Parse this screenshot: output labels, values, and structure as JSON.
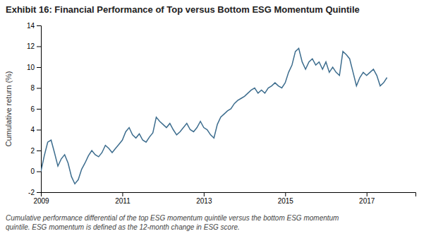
{
  "chart_data": {
    "type": "line",
    "title": "Exhibit 16: Financial Performance of Top versus Bottom ESG Momentum Quintile",
    "y_label": "Cumulative return (%)",
    "caption": "Cumulative performance differential of the top ESG momentum quintile versus the bottom ESG momentum\nquintile. ESG momentum is defined as the 12-month change in ESG score.",
    "color": "#3d6d8e",
    "grid": false,
    "xlim": [
      2009.0,
      2018.2
    ],
    "xticks": [
      2009,
      2011,
      2013,
      2015,
      2017
    ],
    "ylim": [
      -2,
      14
    ],
    "yticks": [
      -2,
      0,
      2,
      4,
      6,
      8,
      10,
      12,
      14
    ],
    "x": [
      2009.0,
      2009.083,
      2009.167,
      2009.25,
      2009.333,
      2009.417,
      2009.5,
      2009.583,
      2009.667,
      2009.75,
      2009.833,
      2009.917,
      2010.0,
      2010.083,
      2010.167,
      2010.25,
      2010.333,
      2010.417,
      2010.5,
      2010.583,
      2010.667,
      2010.75,
      2010.833,
      2010.917,
      2011.0,
      2011.083,
      2011.167,
      2011.25,
      2011.333,
      2011.417,
      2011.5,
      2011.583,
      2011.667,
      2011.75,
      2011.833,
      2011.917,
      2012.0,
      2012.083,
      2012.167,
      2012.25,
      2012.333,
      2012.417,
      2012.5,
      2012.583,
      2012.667,
      2012.75,
      2012.833,
      2012.917,
      2013.0,
      2013.083,
      2013.167,
      2013.25,
      2013.333,
      2013.417,
      2013.5,
      2013.583,
      2013.667,
      2013.75,
      2013.833,
      2013.917,
      2014.0,
      2014.083,
      2014.167,
      2014.25,
      2014.333,
      2014.417,
      2014.5,
      2014.583,
      2014.667,
      2014.75,
      2014.833,
      2014.917,
      2015.0,
      2015.083,
      2015.167,
      2015.25,
      2015.333,
      2015.417,
      2015.5,
      2015.583,
      2015.667,
      2015.75,
      2015.833,
      2015.917,
      2016.0,
      2016.083,
      2016.167,
      2016.25,
      2016.333,
      2016.417,
      2016.5,
      2016.583,
      2016.667,
      2016.75,
      2016.833,
      2016.917,
      2017.0,
      2017.083,
      2017.167,
      2017.25,
      2017.333,
      2017.417,
      2017.5
    ],
    "values": [
      0.0,
      1.5,
      2.8,
      3.0,
      1.8,
      0.5,
      1.2,
      1.6,
      0.8,
      -0.5,
      -1.2,
      -0.8,
      0.2,
      0.8,
      1.5,
      2.0,
      1.6,
      1.4,
      1.8,
      2.5,
      2.2,
      1.8,
      2.2,
      2.6,
      3.0,
      3.8,
      4.2,
      3.5,
      3.2,
      3.6,
      3.0,
      2.8,
      3.3,
      3.7,
      5.2,
      4.8,
      4.5,
      4.2,
      4.6,
      4.0,
      3.5,
      3.8,
      4.2,
      4.6,
      4.0,
      3.8,
      4.2,
      4.8,
      4.2,
      4.0,
      3.5,
      3.2,
      4.5,
      5.2,
      5.5,
      5.8,
      6.0,
      6.5,
      6.8,
      7.0,
      7.2,
      7.5,
      7.8,
      8.0,
      7.5,
      7.8,
      7.5,
      8.0,
      8.2,
      8.5,
      8.2,
      8.0,
      8.5,
      9.5,
      10.2,
      11.5,
      11.8,
      10.5,
      9.8,
      10.5,
      10.8,
      10.2,
      10.5,
      9.8,
      10.5,
      9.5,
      10.0,
      9.5,
      9.2,
      11.5,
      11.2,
      10.8,
      9.5,
      8.2,
      9.0,
      9.5,
      9.2,
      9.5,
      9.8,
      9.2,
      8.2,
      8.5,
      9.0
    ]
  }
}
